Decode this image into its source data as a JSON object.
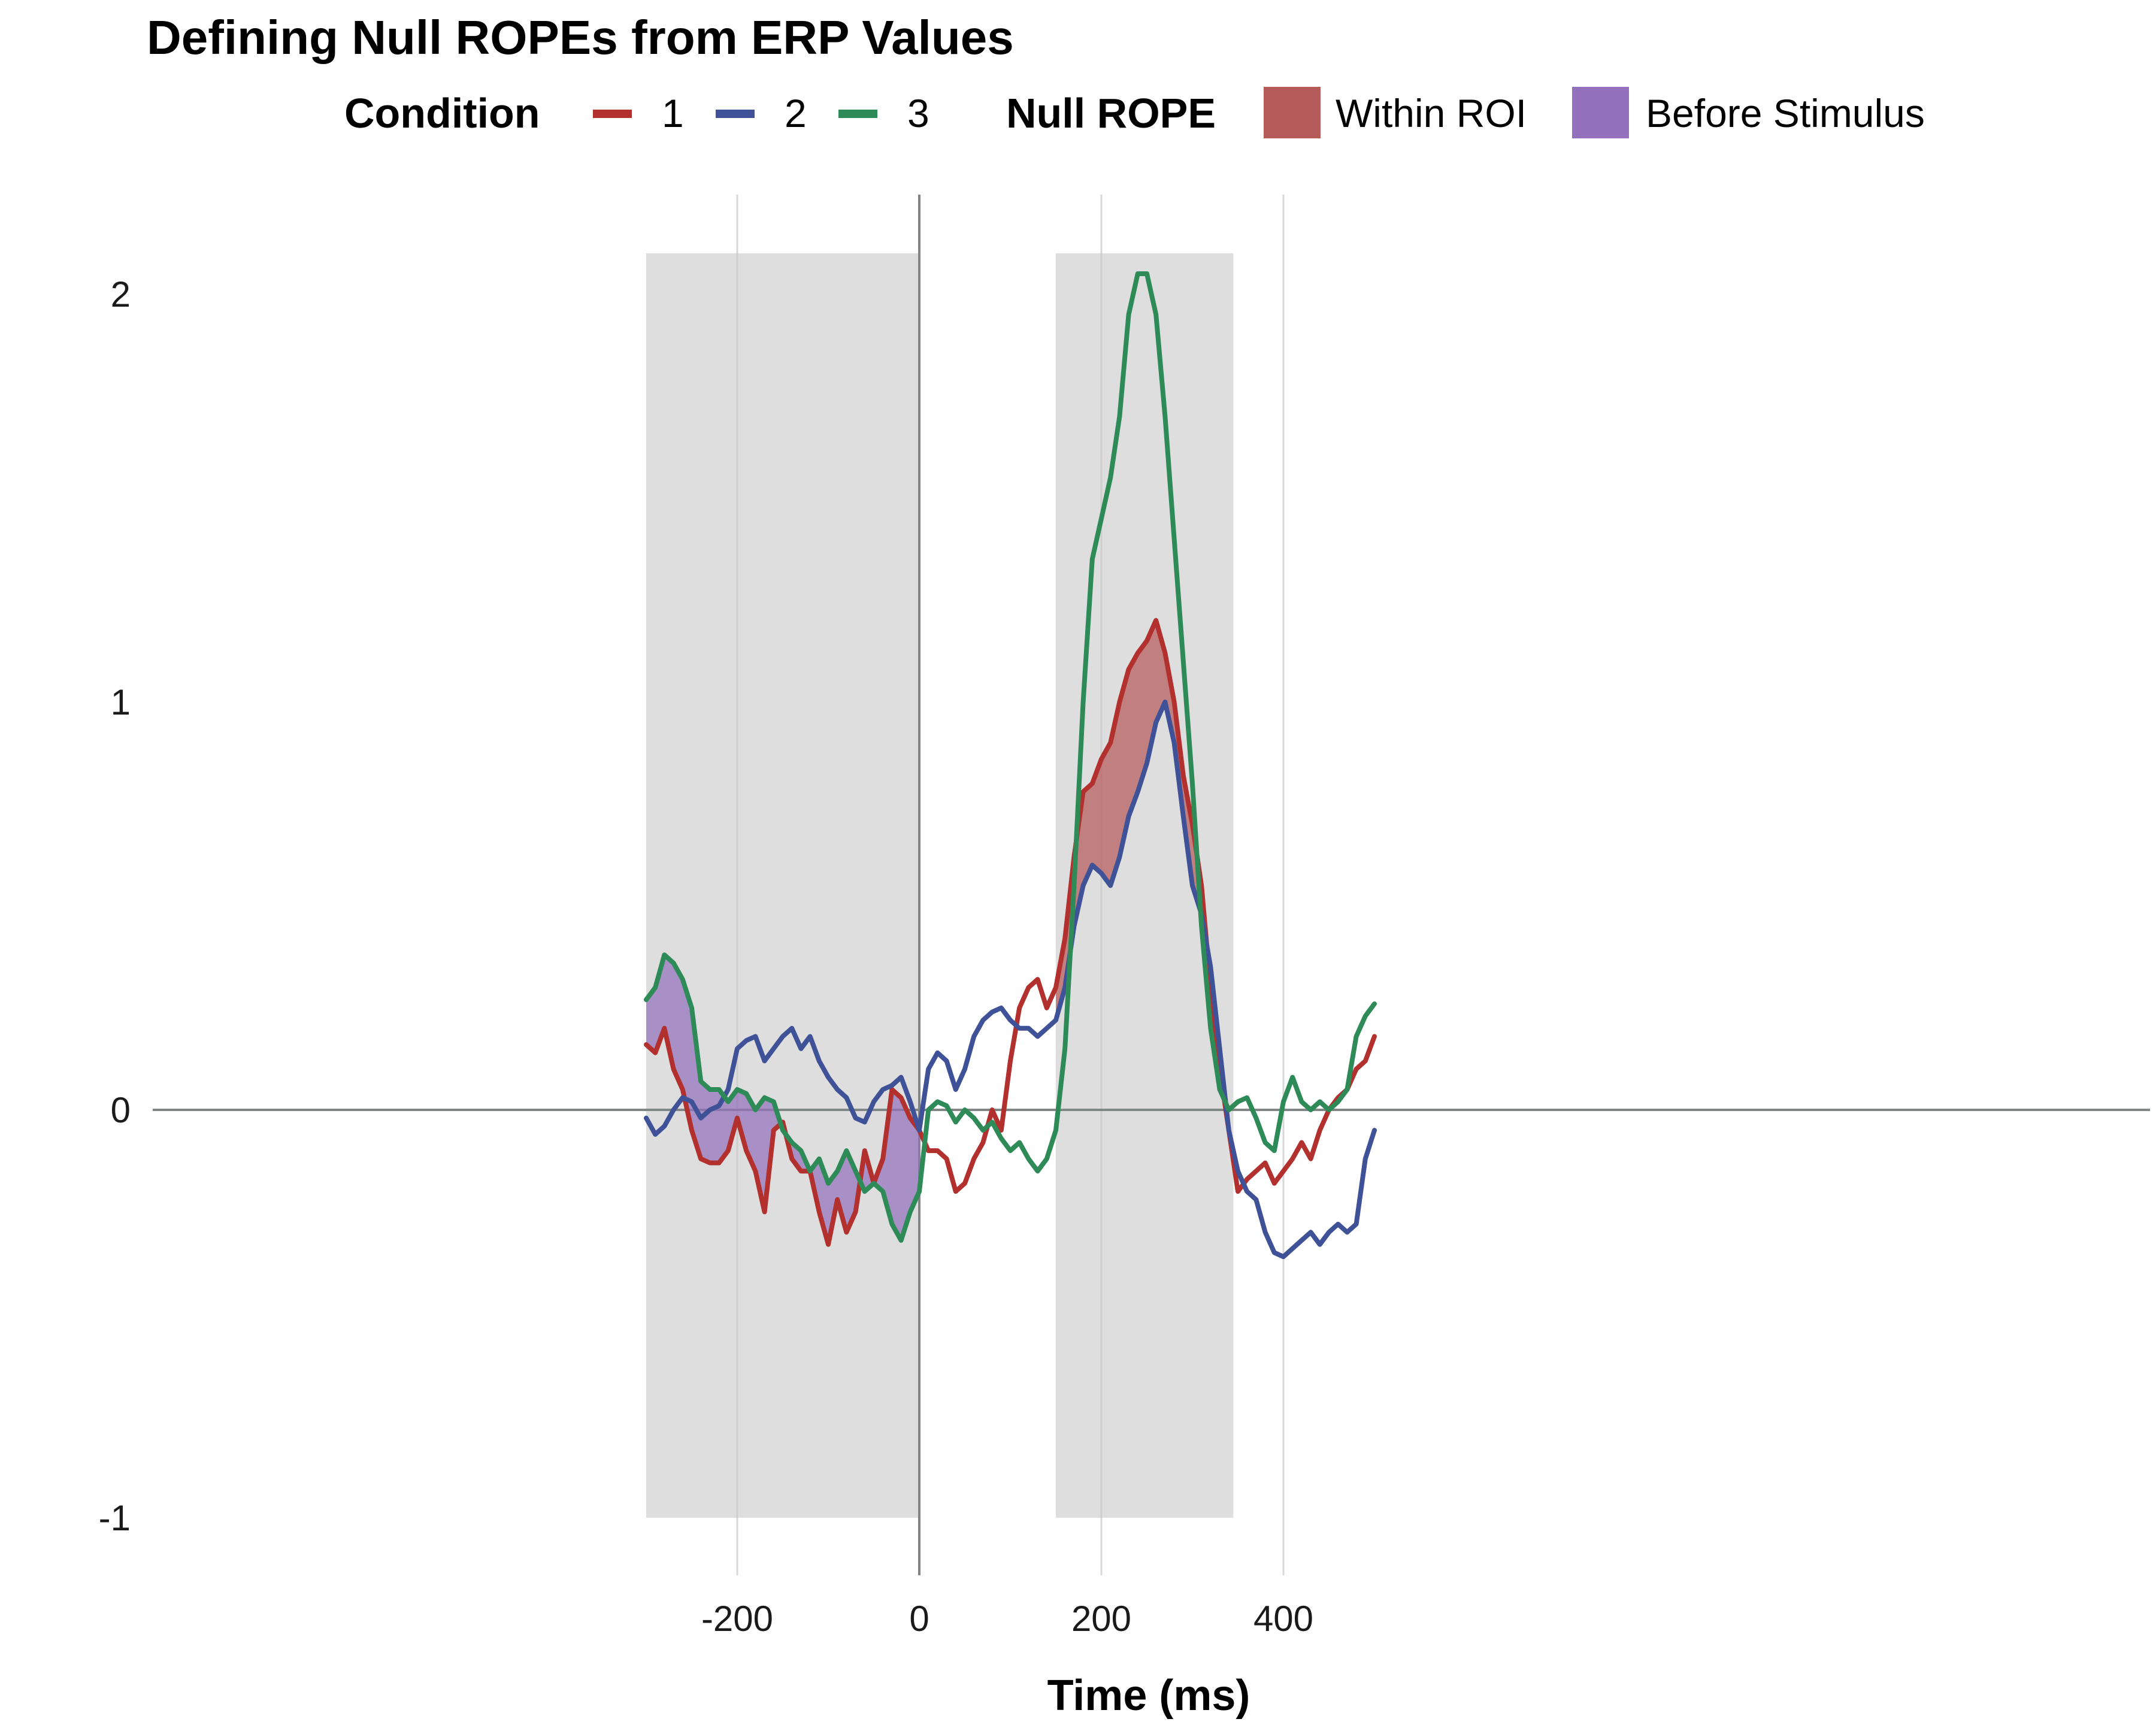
{
  "chart_data": {
    "type": "line",
    "title": "Defining Null ROPEs from ERP Values",
    "xlabel": "Time (ms)",
    "ylabel": "",
    "xlim": [
      -300,
      500
    ],
    "ylim": [
      -1,
      2.1
    ],
    "x_ticks": [
      -200,
      0,
      200,
      400
    ],
    "x_tick_labels": [
      "-200",
      "0",
      "200",
      "400"
    ],
    "y_ticks": [
      -1,
      0,
      1,
      2
    ],
    "y_tick_labels": [
      "-1",
      "0",
      "1",
      "2"
    ],
    "grid": "vertical major lines only",
    "legend_position": "top",
    "legend": {
      "condition_title": "Condition",
      "condition_labels": [
        "1",
        "2",
        "3"
      ],
      "rope_title": "Null ROPE",
      "rope_labels": [
        "Within ROI",
        "Before Stimulus"
      ]
    },
    "regions": [
      {
        "x0": -300,
        "x1": 0,
        "y0": -1,
        "y1": 2.1
      },
      {
        "x0": 150,
        "x1": 345,
        "y0": -1,
        "y1": 2.1
      }
    ],
    "x": [
      -300,
      -290,
      -280,
      -270,
      -260,
      -250,
      -240,
      -230,
      -220,
      -210,
      -200,
      -190,
      -180,
      -170,
      -160,
      -150,
      -140,
      -130,
      -120,
      -110,
      -100,
      -90,
      -80,
      -70,
      -60,
      -50,
      -40,
      -30,
      -20,
      -10,
      0,
      10,
      20,
      30,
      40,
      50,
      60,
      70,
      80,
      90,
      100,
      110,
      120,
      130,
      140,
      150,
      160,
      170,
      180,
      190,
      200,
      210,
      220,
      230,
      240,
      250,
      260,
      270,
      280,
      290,
      300,
      310,
      320,
      330,
      340,
      350,
      360,
      370,
      380,
      390,
      400,
      410,
      420,
      430,
      440,
      450,
      460,
      470,
      480,
      490,
      500
    ],
    "series": [
      {
        "name": "1",
        "color": "#b2302e",
        "values": [
          0.16,
          0.14,
          0.2,
          0.1,
          0.05,
          -0.05,
          -0.12,
          -0.13,
          -0.13,
          -0.1,
          -0.02,
          -0.1,
          -0.15,
          -0.25,
          -0.05,
          -0.03,
          -0.12,
          -0.15,
          -0.15,
          -0.25,
          -0.33,
          -0.22,
          -0.3,
          -0.25,
          -0.1,
          -0.18,
          -0.12,
          0.05,
          0.03,
          -0.02,
          -0.05,
          -0.1,
          -0.1,
          -0.12,
          -0.2,
          -0.18,
          -0.12,
          -0.08,
          0.0,
          -0.05,
          0.12,
          0.25,
          0.3,
          0.32,
          0.25,
          0.3,
          0.42,
          0.62,
          0.78,
          0.8,
          0.86,
          0.9,
          1.0,
          1.08,
          1.12,
          1.15,
          1.2,
          1.12,
          1.0,
          0.82,
          0.7,
          0.55,
          0.3,
          0.1,
          -0.05,
          -0.2,
          -0.17,
          -0.15,
          -0.13,
          -0.18,
          -0.15,
          -0.12,
          -0.08,
          -0.12,
          -0.05,
          0.0,
          0.03,
          0.05,
          0.1,
          0.12,
          0.18
        ]
      },
      {
        "name": "2",
        "color": "#3f5197",
        "values": [
          -0.02,
          -0.06,
          -0.04,
          0.0,
          0.03,
          0.02,
          -0.02,
          0.0,
          0.01,
          0.05,
          0.15,
          0.17,
          0.18,
          0.12,
          0.15,
          0.18,
          0.2,
          0.15,
          0.18,
          0.12,
          0.08,
          0.05,
          0.03,
          -0.02,
          -0.03,
          0.02,
          0.05,
          0.06,
          0.08,
          0.02,
          -0.05,
          0.1,
          0.14,
          0.12,
          0.05,
          0.1,
          0.18,
          0.22,
          0.24,
          0.25,
          0.22,
          0.2,
          0.2,
          0.18,
          0.2,
          0.22,
          0.3,
          0.45,
          0.55,
          0.6,
          0.58,
          0.55,
          0.62,
          0.72,
          0.78,
          0.85,
          0.95,
          1.0,
          0.9,
          0.72,
          0.55,
          0.48,
          0.35,
          0.15,
          -0.05,
          -0.15,
          -0.2,
          -0.22,
          -0.3,
          -0.35,
          -0.36,
          -0.34,
          -0.32,
          -0.3,
          -0.33,
          -0.3,
          -0.28,
          -0.3,
          -0.28,
          -0.12,
          -0.05
        ]
      },
      {
        "name": "3",
        "color": "#2e8b57",
        "values": [
          0.27,
          0.3,
          0.38,
          0.36,
          0.32,
          0.25,
          0.07,
          0.05,
          0.05,
          0.02,
          0.05,
          0.04,
          0.0,
          0.03,
          0.02,
          -0.05,
          -0.08,
          -0.1,
          -0.15,
          -0.12,
          -0.18,
          -0.15,
          -0.1,
          -0.15,
          -0.2,
          -0.18,
          -0.2,
          -0.28,
          -0.32,
          -0.25,
          -0.2,
          0.0,
          0.02,
          0.01,
          -0.03,
          0.0,
          -0.02,
          -0.05,
          -0.03,
          -0.07,
          -0.1,
          -0.08,
          -0.12,
          -0.15,
          -0.12,
          -0.05,
          0.15,
          0.55,
          1.0,
          1.35,
          1.45,
          1.55,
          1.7,
          1.95,
          2.05,
          2.05,
          1.95,
          1.7,
          1.4,
          1.1,
          0.8,
          0.45,
          0.2,
          0.05,
          0.0,
          0.02,
          0.03,
          -0.02,
          -0.08,
          -0.1,
          0.02,
          0.08,
          0.02,
          0.0,
          0.02,
          0.0,
          0.02,
          0.05,
          0.18,
          0.23,
          0.26
        ]
      }
    ],
    "rope_bands": [
      {
        "name": "Before Stimulus",
        "color": "#9370bb",
        "x_from": -300,
        "x_to": 0,
        "lower_series": "1",
        "upper_series": "3"
      },
      {
        "name": "Within ROI",
        "color": "#b55c5a",
        "x_from": 150,
        "x_to": 345,
        "lower_series": "2",
        "upper_series": "1"
      }
    ]
  }
}
